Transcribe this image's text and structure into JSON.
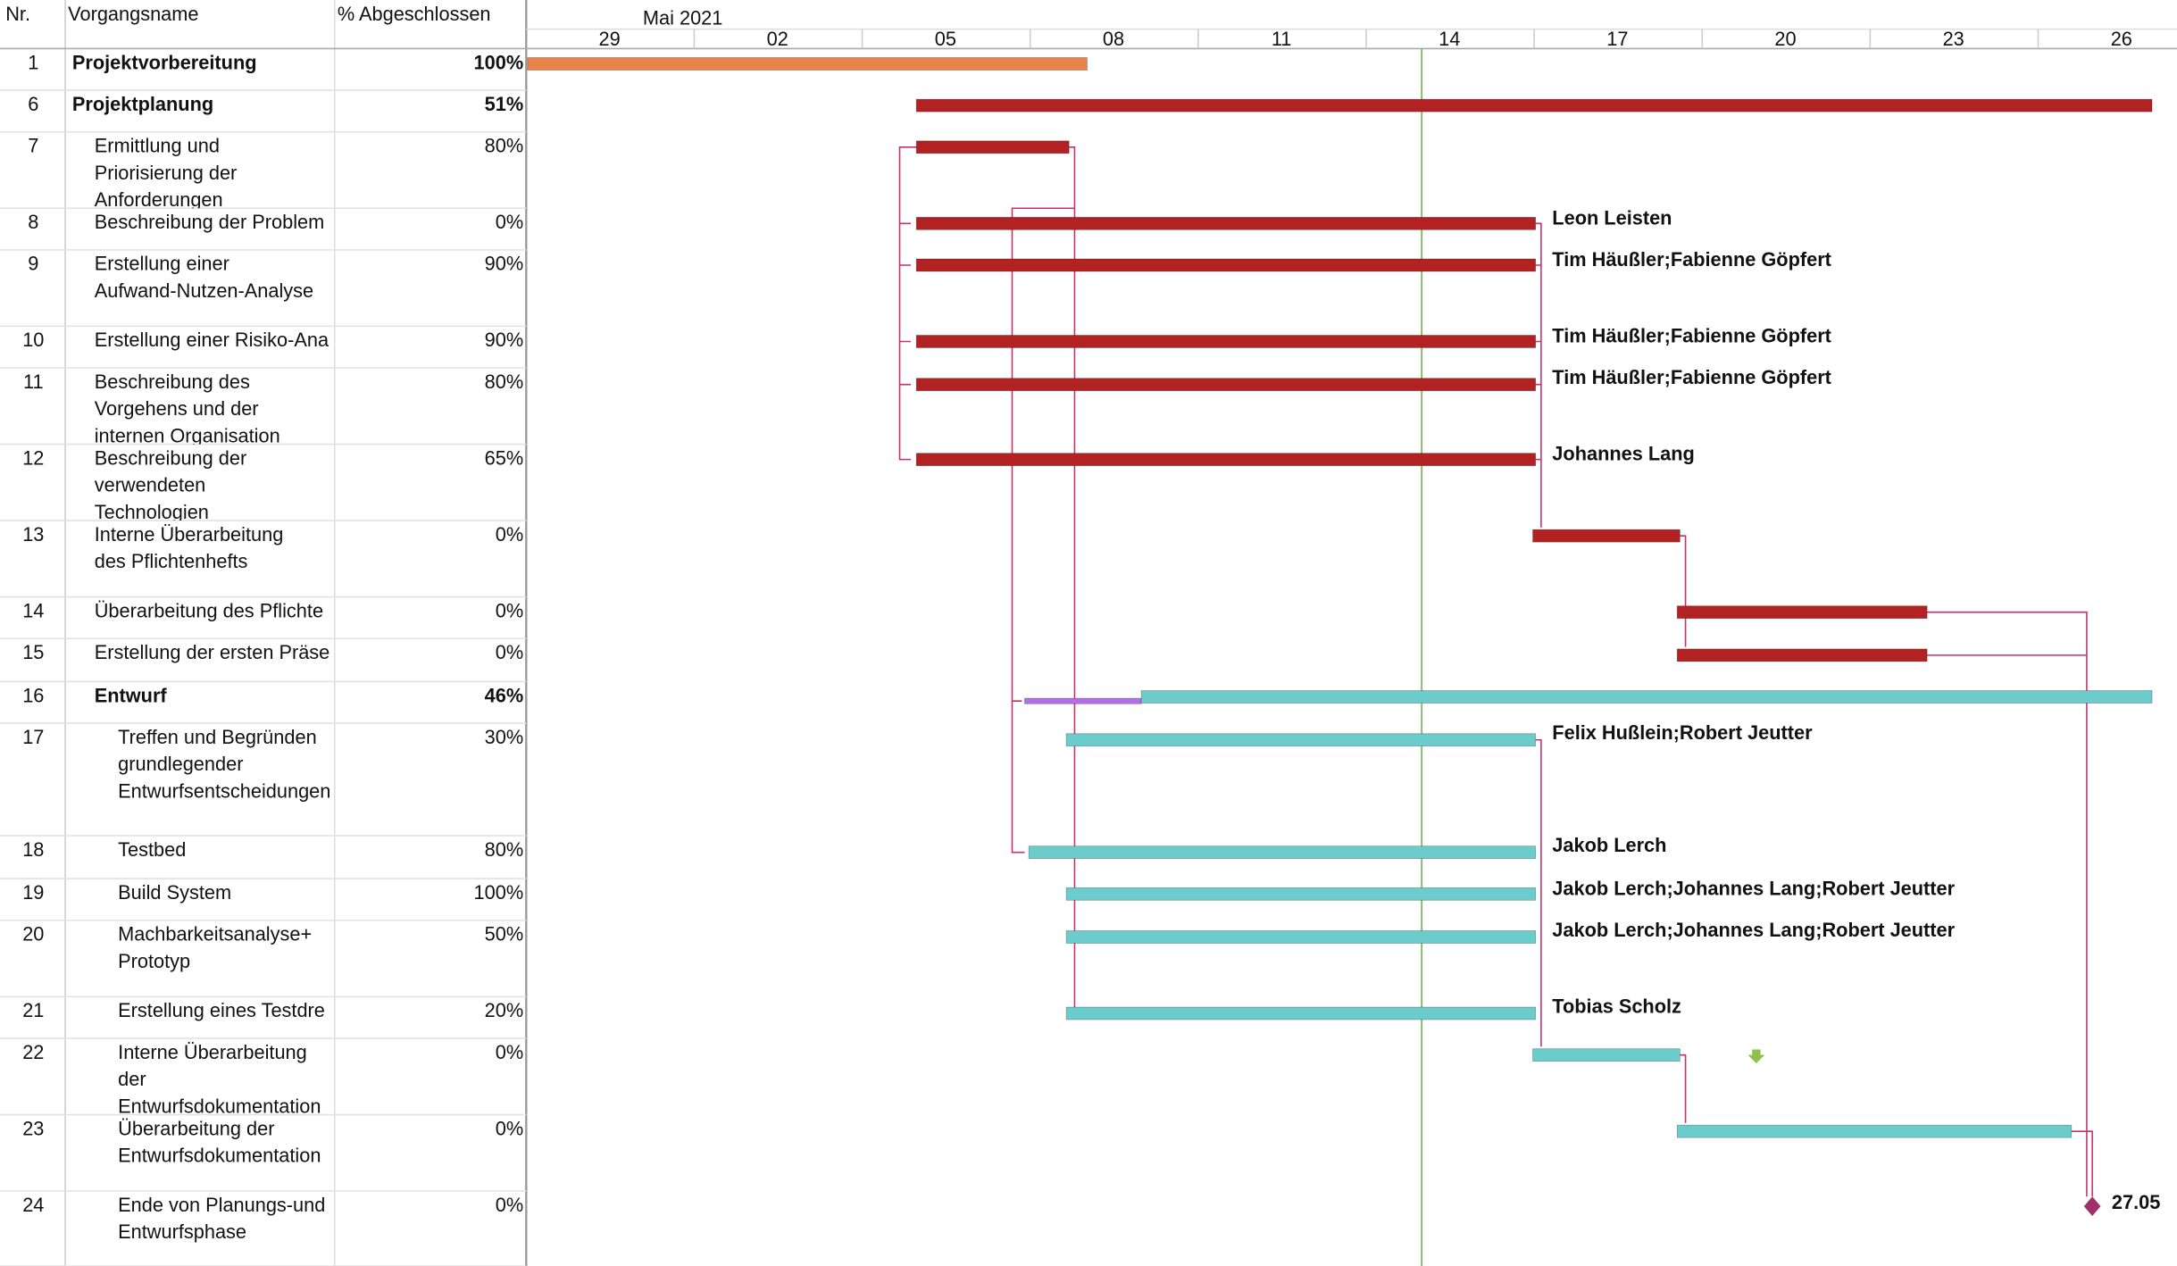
{
  "columns": [
    "Nr.",
    "Vorgangsname",
    "% Abgeschlossen"
  ],
  "timeline": {
    "month": "Mai 2021",
    "days": [
      "29",
      "02",
      "05",
      "08",
      "11",
      "14",
      "17",
      "20",
      "23",
      "26"
    ]
  },
  "tasks": [
    {
      "nr": "1",
      "name": [
        "Projektvorbereitung"
      ],
      "pct": "100%"
    },
    {
      "nr": "6",
      "name": [
        "Projektplanung"
      ],
      "pct": "51%"
    },
    {
      "nr": "7",
      "name": [
        "Ermittlung und",
        "Priorisierung der",
        "Anforderungen"
      ],
      "pct": "80%"
    },
    {
      "nr": "8",
      "name": [
        "Beschreibung der Problem"
      ],
      "pct": "0%",
      "resource": "Leon Leisten"
    },
    {
      "nr": "9",
      "name": [
        "Erstellung einer",
        "Aufwand-Nutzen-Analyse"
      ],
      "pct": "90%",
      "resource": "Tim Häußler;Fabienne Göpfert"
    },
    {
      "nr": "10",
      "name": [
        "Erstellung einer Risiko-Ana"
      ],
      "pct": "90%",
      "resource": "Tim Häußler;Fabienne Göpfert"
    },
    {
      "nr": "11",
      "name": [
        "Beschreibung des",
        "Vorgehens und der",
        "internen Organisation"
      ],
      "pct": "80%",
      "resource": "Tim Häußler;Fabienne Göpfert"
    },
    {
      "nr": "12",
      "name": [
        "Beschreibung der",
        "verwendeten",
        "Technologien"
      ],
      "pct": "65%",
      "resource": "Johannes Lang"
    },
    {
      "nr": "13",
      "name": [
        "Interne Überarbeitung",
        "des Pflichtenhefts"
      ],
      "pct": "0%"
    },
    {
      "nr": "14",
      "name": [
        "Überarbeitung des Pflichte"
      ],
      "pct": "0%"
    },
    {
      "nr": "15",
      "name": [
        "Erstellung der ersten Präse"
      ],
      "pct": "0%"
    },
    {
      "nr": "16",
      "name": [
        "Entwurf"
      ],
      "pct": "46%"
    },
    {
      "nr": "17",
      "name": [
        "Treffen und Begründen",
        "grundlegender",
        "Entwurfsentscheidungen"
      ],
      "pct": "30%",
      "resource": "Felix Hußlein;Robert Jeutter"
    },
    {
      "nr": "18",
      "name": [
        "Testbed"
      ],
      "pct": "80%",
      "resource": "Jakob Lerch"
    },
    {
      "nr": "19",
      "name": [
        "Build System"
      ],
      "pct": "100%",
      "resource": "Jakob Lerch;Johannes Lang;Robert Jeutter"
    },
    {
      "nr": "20",
      "name": [
        "Machbarkeitsanalyse+",
        "Prototyp"
      ],
      "pct": "50%",
      "resource": "Jakob Lerch;Johannes Lang;Robert Jeutter"
    },
    {
      "nr": "21",
      "name": [
        "Erstellung eines Testdre"
      ],
      "pct": "20%",
      "resource": "Tobias Scholz"
    },
    {
      "nr": "22",
      "name": [
        "Interne Überarbeitung",
        "der",
        "Entwurfsdokumentation"
      ],
      "pct": "0%"
    },
    {
      "nr": "23",
      "name": [
        "Überarbeitung der",
        "Entwurfsdokumentation"
      ],
      "pct": "0%"
    },
    {
      "nr": "24",
      "name": [
        "Ende von Planungs-und",
        "Entwurfsphase"
      ],
      "pct": "0%",
      "milestone": "27.05"
    }
  ]
}
